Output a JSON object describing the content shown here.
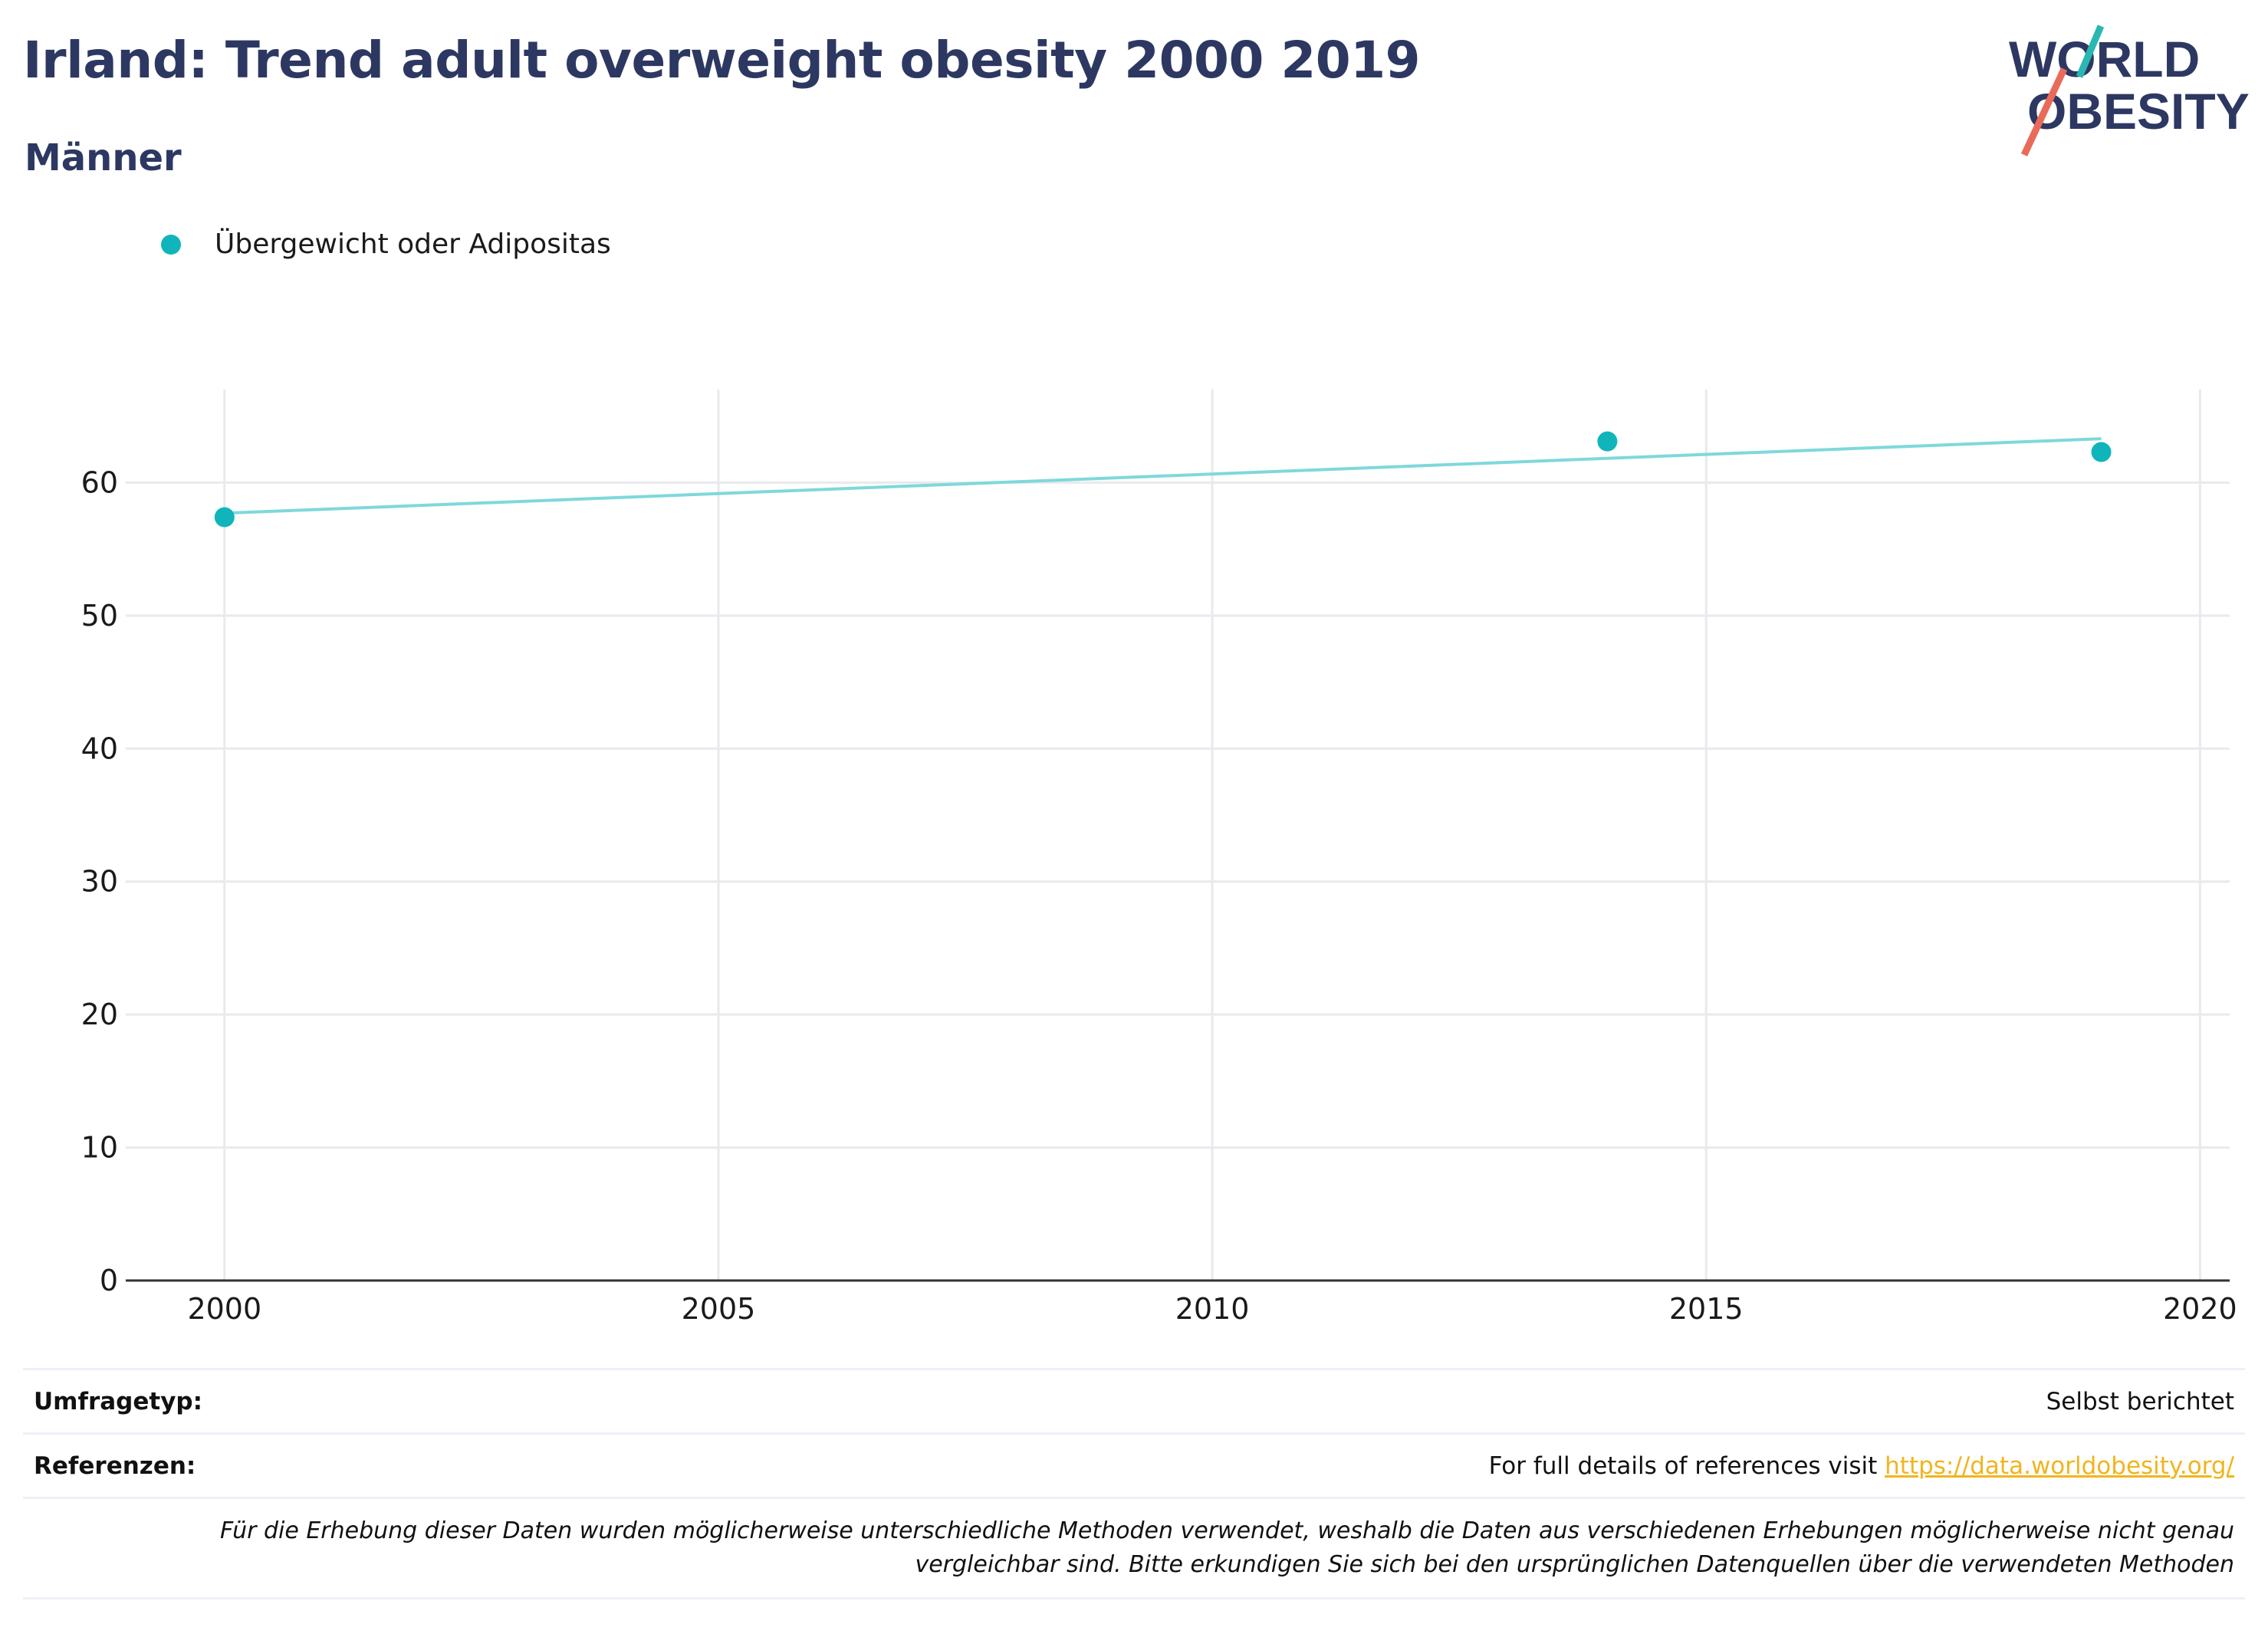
{
  "header": {
    "title": "Irland: Trend adult overweight obesity 2000 2019",
    "subtitle": "Männer"
  },
  "logo": {
    "line1": "WORLD",
    "line2": "OBESITY",
    "accent_teal": "#2ab7b3",
    "accent_coral": "#ea6a5a",
    "text_color": "#2d3862"
  },
  "chart_data": {
    "type": "scatter",
    "title": "",
    "xlabel": "",
    "ylabel": "",
    "xlim": [
      1999,
      2020.3
    ],
    "ylim": [
      0,
      67
    ],
    "x_ticks": [
      2000,
      2005,
      2010,
      2015,
      2020
    ],
    "y_ticks": [
      0,
      10,
      20,
      30,
      40,
      50,
      60
    ],
    "grid": true,
    "legend_position": "top-left",
    "series": [
      {
        "name": "Übergewicht oder Adipositas",
        "color": "#0fb5ba",
        "x": [
          2000,
          2014,
          2019
        ],
        "y": [
          57.4,
          63.1,
          62.3
        ]
      }
    ],
    "trendline": {
      "color": "#7fd8da",
      "x": [
        2000,
        2019
      ],
      "y": [
        57.7,
        63.3
      ]
    }
  },
  "footer": {
    "survey_label": "Umfragetyp:",
    "survey_value": "Selbst berichtet",
    "references_label": "Referenzen:",
    "references_text": "For full details of references visit ",
    "references_link": "https://data.worldobesity.org/",
    "note_line1": "Für die Erhebung dieser Daten wurden möglicherweise unterschiedliche Methoden verwendet, weshalb die Daten aus verschiedenen Erhebungen möglicherweise nicht genau",
    "note_line2": "vergleichbar sind. Bitte erkundigen Sie sich bei den ursprünglichen Datenquellen über die verwendeten Methoden"
  }
}
